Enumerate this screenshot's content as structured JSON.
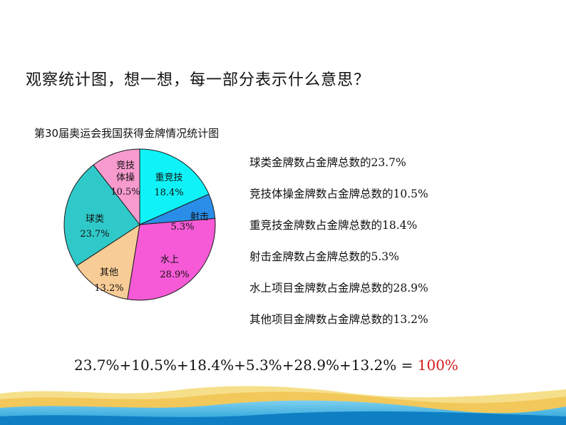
{
  "question": "观察统计图，想一想，每一部分表示什么意思？",
  "chart_data": {
    "type": "pie",
    "title": "第30届奥运会我国获得金牌情况统计图",
    "slices": [
      {
        "name": "重竞技",
        "value": 18.4,
        "label": "18.4%",
        "color": "#0ff3f8"
      },
      {
        "name": "射击",
        "value": 5.3,
        "label": "5.3%",
        "color": "#2a8ee8"
      },
      {
        "name": "水上",
        "value": 28.9,
        "label": "28.9%",
        "color": "#f65ad6"
      },
      {
        "name": "其他",
        "value": 13.2,
        "label": "13.2%",
        "color": "#f8cc96"
      },
      {
        "name": "球类",
        "value": 23.7,
        "label": "23.7%",
        "color": "#30c9c9"
      },
      {
        "name": "竞技体操",
        "value": 10.5,
        "label": "10.5%",
        "color": "#f79bcf"
      }
    ]
  },
  "statements": [
    "球类金牌数占金牌总数的23.7%",
    "竞技体操金牌数占金牌总数的10.5%",
    "重竞技金牌数占金牌总数的18.4%",
    "射击金牌数占金牌总数的5.3%",
    "水上项目金牌数占金牌总数的28.9%",
    "其他项目金牌数占金牌总数的13.2%"
  ],
  "equation": {
    "expression": "23.7%+10.5%+18.4%+5.3%+28.9%+13.2% = ",
    "result": "100%"
  }
}
